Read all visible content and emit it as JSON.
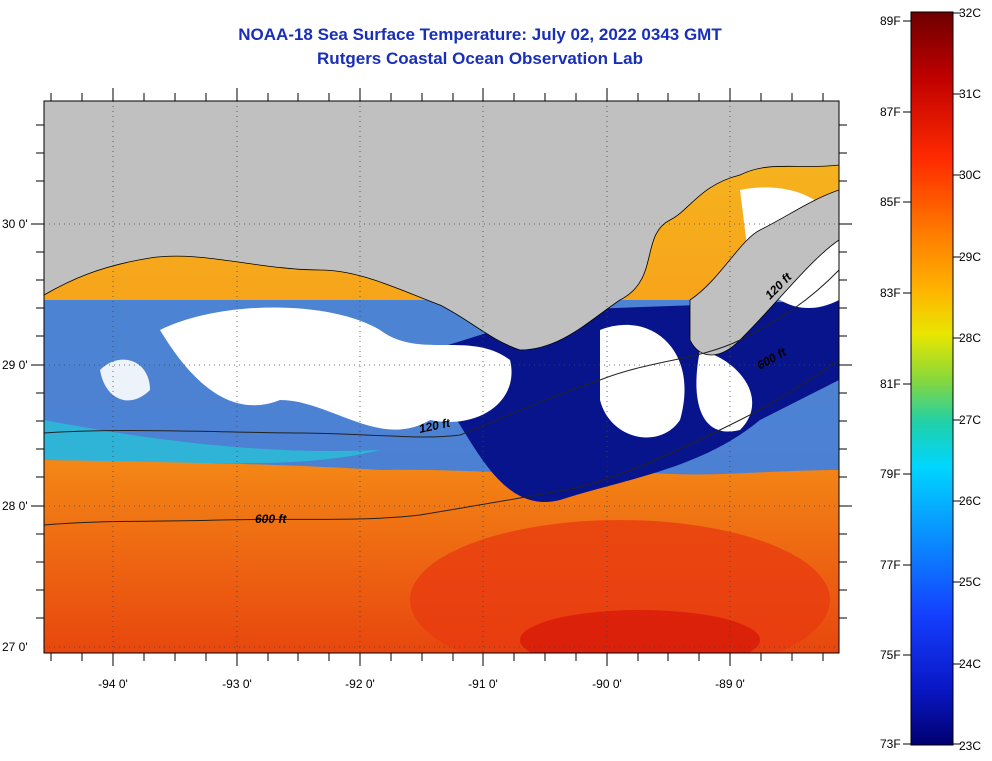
{
  "header": {
    "title": "NOAA-18 Sea Surface Temperature:  July 02, 2022 0343 GMT",
    "subtitle": "Rutgers Coastal Ocean Observation Lab"
  },
  "map": {
    "lon_labels": [
      "-94 0'",
      "-93 0'",
      "-92 0'",
      "-91 0'",
      "-90 0'",
      "-89 0'"
    ],
    "lat_labels": [
      "30 0'",
      "29 0'",
      "28 0'",
      "27 0'"
    ],
    "lon_range": [
      -94.55,
      -88.1
    ],
    "lat_range": [
      26.95,
      30.85
    ],
    "land_color": "#c0c0c0",
    "cloud_color": "#ffffff",
    "contours": [
      {
        "label": "600 ft"
      },
      {
        "label": "120 ft"
      },
      {
        "label": "120 ft"
      },
      {
        "label": "600 ft"
      }
    ]
  },
  "colorbar": {
    "fahrenheit": [
      "89F",
      "87F",
      "85F",
      "83F",
      "81F",
      "79F",
      "77F",
      "75F",
      "73F"
    ],
    "celsius": [
      "32C",
      "31C",
      "30C",
      "29C",
      "28C",
      "27C",
      "26C",
      "25C",
      "24C",
      "23C"
    ],
    "colors": [
      "#7a0000",
      "#c80000",
      "#ff2a00",
      "#ff7a00",
      "#ffb400",
      "#e6e600",
      "#7ddc3c",
      "#1ed2a0",
      "#00d2ff",
      "#0a8cff",
      "#1440ff",
      "#0a18c8",
      "#00008c"
    ]
  }
}
